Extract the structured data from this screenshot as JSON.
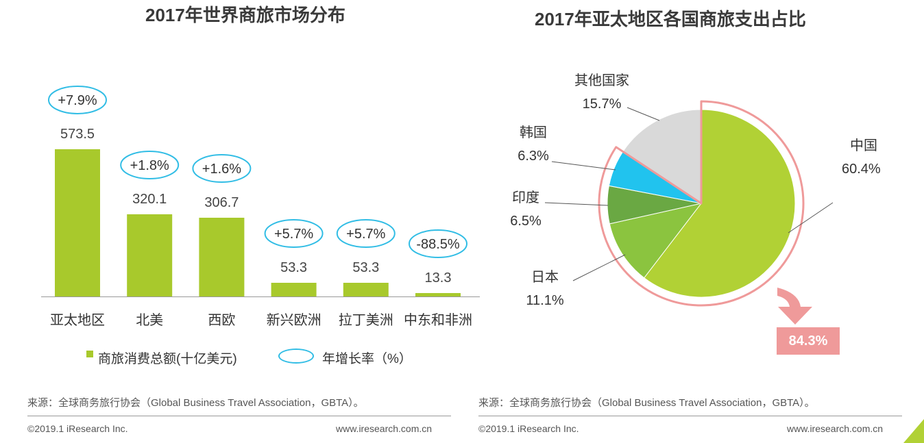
{
  "chart_data": [
    {
      "type": "bar",
      "title": "2017年世界商旅市场分布",
      "categories": [
        "亚太地区",
        "北美",
        "西欧",
        "新兴欧洲",
        "拉丁美洲",
        "中东和非洲"
      ],
      "series": [
        {
          "name": "商旅消费总额(十亿美元)",
          "values": [
            573.5,
            320.1,
            306.7,
            53.3,
            53.3,
            13.3
          ],
          "labels": [
            "573.5",
            "320.1",
            "306.7",
            "53.3",
            "53.3",
            "13.3"
          ]
        },
        {
          "name": "年增长率（%）",
          "labels": [
            "+7.9%",
            "+1.8%",
            "+1.6%",
            "+5.7%",
            "+5.7%",
            "-88.5%"
          ]
        }
      ],
      "ylim": [
        0,
        640
      ],
      "legend": {
        "bar": "商旅消费总额(十亿美元)",
        "growth": "年增长率（%）"
      },
      "source": "来源：全球商务旅行协会（Global Business Travel Association，GBTA）。",
      "copyright": "©2019.1 iResearch Inc.",
      "website": "www.iresearch.com.cn"
    },
    {
      "type": "pie",
      "title": "2017年亚太地区各国商旅支出占比",
      "slices": [
        {
          "label": "中国",
          "value": 60.4,
          "pct": "60.4%",
          "color": "#b1d135"
        },
        {
          "label": "日本",
          "value": 11.1,
          "pct": "11.1%",
          "color": "#8bc43f"
        },
        {
          "label": "印度",
          "value": 6.5,
          "pct": "6.5%",
          "color": "#6aa843"
        },
        {
          "label": "韩国",
          "value": 6.3,
          "pct": "6.3%",
          "color": "#21c3ee"
        },
        {
          "label": "其他国家",
          "value": 15.7,
          "pct": "15.7%",
          "color": "#d9d9d9"
        }
      ],
      "highlight": {
        "value": "84.3%",
        "color": "#ef9a9a"
      },
      "source": "来源：全球商务旅行协会（Global Business Travel Association，GBTA）。",
      "copyright": "©2019.1 iResearch Inc.",
      "website": "www.iresearch.com.cn"
    }
  ],
  "colors": {
    "bar": "#a8c92c",
    "oval": "#31bde5",
    "accent": "#ef9a9a"
  }
}
